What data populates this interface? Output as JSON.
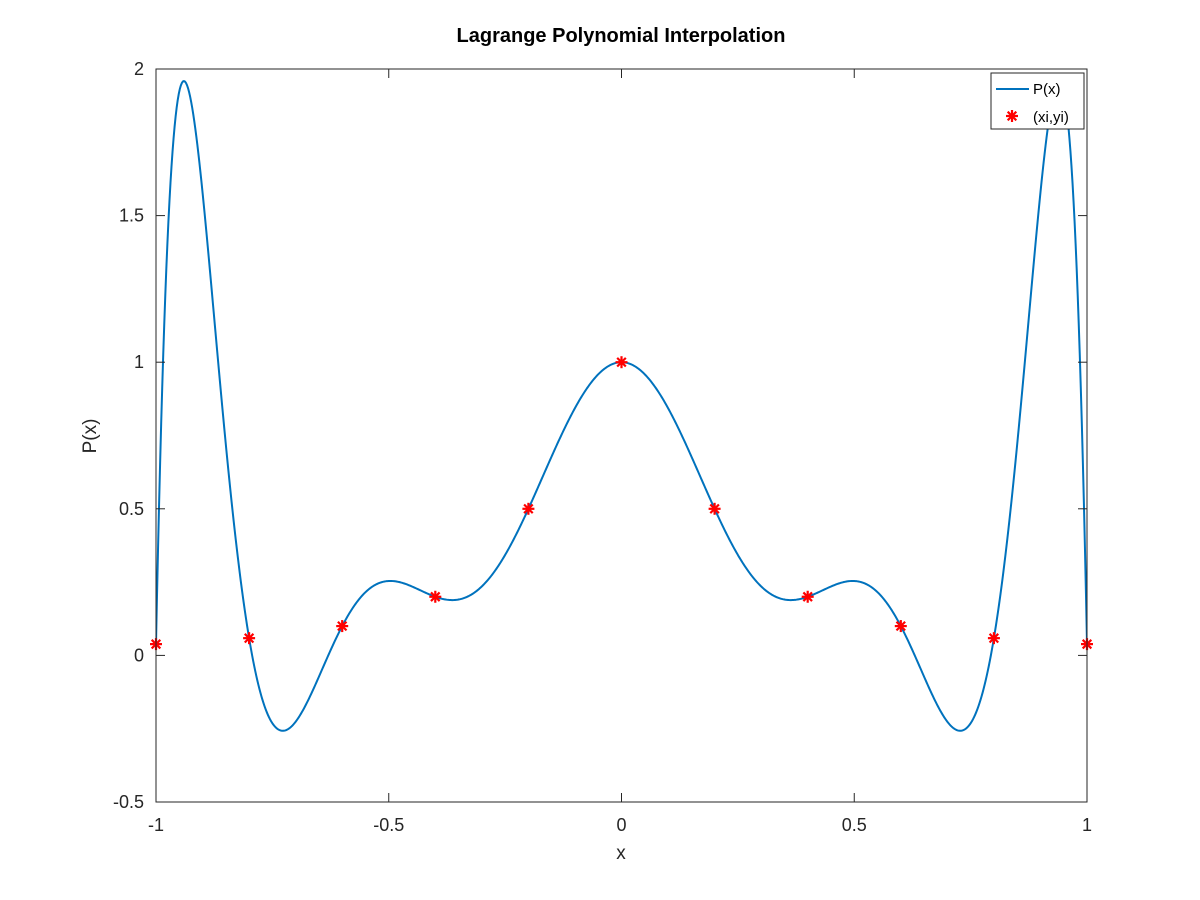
{
  "chart_data": {
    "type": "line",
    "title": "Lagrange Polynomial Interpolation",
    "xlabel": "x",
    "ylabel": "P(x)",
    "xlim": [
      -1,
      1
    ],
    "ylim": [
      -0.5,
      2
    ],
    "xticks": [
      -1,
      -0.5,
      0,
      0.5,
      1
    ],
    "xtick_labels": [
      "-1",
      "-0.5",
      "0",
      "0.5",
      "1"
    ],
    "yticks": [
      -0.5,
      0,
      0.5,
      1,
      1.5,
      2
    ],
    "ytick_labels": [
      "-0.5",
      "0",
      "0.5",
      "1",
      "1.5",
      "2"
    ],
    "grid": false,
    "legend_position": "top-right",
    "series": [
      {
        "name": "P(x)",
        "kind": "line",
        "color": "#0072BD",
        "function": "runge",
        "interpolation_nodes": [
          -1,
          -0.8,
          -0.6,
          -0.4,
          -0.2,
          0,
          0.2,
          0.4,
          0.6,
          0.8,
          1
        ]
      },
      {
        "name": "(xi,yi)",
        "kind": "markers",
        "marker": "asterisk",
        "color": "#FF0000",
        "x": [
          -1,
          -0.8,
          -0.6,
          -0.4,
          -0.2,
          0,
          0.2,
          0.4,
          0.6,
          0.8,
          1
        ],
        "y": [
          0.0385,
          0.0588,
          0.1,
          0.2,
          0.5,
          1.0,
          0.5,
          0.2,
          0.1,
          0.0588,
          0.0385
        ]
      }
    ]
  }
}
